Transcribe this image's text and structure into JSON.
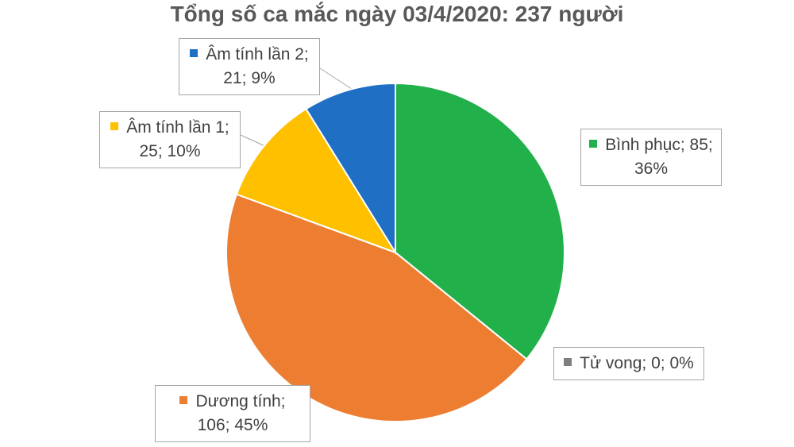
{
  "chart_data": {
    "type": "pie",
    "title": "Tổng số ca mắc ngày 03/4/2020:  237 người",
    "labels": [
      "Bình phục; 85; 36%",
      "Tử vong; 0; 0%",
      "Dương tính; 106; 45%",
      "Âm tính lần 1; 25; 10%",
      "Âm tính lần 2; 21; 9%"
    ],
    "values": [
      85,
      0,
      106,
      25,
      21
    ],
    "percents": [
      36,
      0,
      45,
      10,
      9
    ],
    "colors": [
      "#22b04b",
      "#7f7f7f",
      "#ed7d31",
      "#ffc000",
      "#1f6fc5"
    ]
  }
}
